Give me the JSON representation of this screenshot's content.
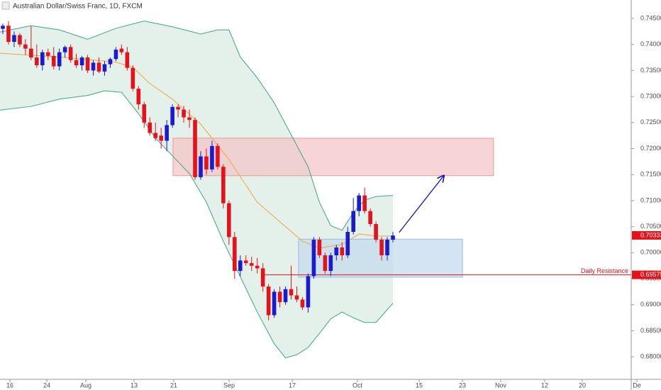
{
  "chart_data": {
    "type": "candlestick",
    "title": "Australian Dollar/Swiss Franc, 1D, FXCM",
    "up_color": "#1a1ad0",
    "down_color": "#e3121b",
    "open": [
      0.743,
      0.7436,
      0.7405,
      0.7418,
      0.74,
      0.7392,
      0.7375,
      0.736,
      0.7385,
      0.7378,
      0.7358,
      0.7385,
      0.7395,
      0.737,
      0.736,
      0.7375,
      0.735,
      0.7365,
      0.7348,
      0.7362,
      0.7372,
      0.7392,
      0.7385,
      0.7355,
      0.7315,
      0.7285,
      0.725,
      0.723,
      0.7225,
      0.7215,
      0.7245,
      0.728,
      0.7275,
      0.726,
      0.7255,
      0.7145,
      0.7185,
      0.716,
      0.7205,
      0.7165,
      0.7095,
      0.703,
      0.6965,
      0.6985,
      0.698,
      0.6975,
      0.697,
      0.6935,
      0.688,
      0.6925,
      0.6905,
      0.693,
      0.6918,
      0.691,
      0.6895,
      0.6955,
      0.7025,
      0.6995,
      0.6965,
      0.6995,
      0.701,
      0.6995,
      0.704,
      0.708,
      0.711,
      0.708,
      0.7055,
      0.7025,
      0.6995,
      0.7025
    ],
    "high": [
      0.744,
      0.7445,
      0.7425,
      0.7422,
      0.741,
      0.7435,
      0.74,
      0.739,
      0.7392,
      0.7395,
      0.7392,
      0.7398,
      0.74,
      0.7382,
      0.7378,
      0.738,
      0.737,
      0.7375,
      0.7368,
      0.7375,
      0.7395,
      0.74,
      0.7395,
      0.736,
      0.732,
      0.729,
      0.726,
      0.725,
      0.724,
      0.7255,
      0.7285,
      0.7285,
      0.7282,
      0.7275,
      0.726,
      0.7195,
      0.72,
      0.7215,
      0.721,
      0.717,
      0.71,
      0.704,
      0.6995,
      0.6995,
      0.6992,
      0.699,
      0.698,
      0.694,
      0.693,
      0.6935,
      0.6935,
      0.6975,
      0.6935,
      0.6915,
      0.696,
      0.703,
      0.703,
      0.7,
      0.7,
      0.7015,
      0.702,
      0.705,
      0.7105,
      0.7115,
      0.7125,
      0.7085,
      0.706,
      0.703,
      0.703,
      0.704
    ],
    "low": [
      0.742,
      0.74,
      0.7395,
      0.7395,
      0.738,
      0.737,
      0.7355,
      0.735,
      0.737,
      0.7352,
      0.735,
      0.7375,
      0.7365,
      0.7355,
      0.735,
      0.7345,
      0.734,
      0.7345,
      0.734,
      0.7355,
      0.7368,
      0.738,
      0.735,
      0.731,
      0.7275,
      0.724,
      0.7225,
      0.7215,
      0.72,
      0.7195,
      0.724,
      0.726,
      0.725,
      0.724,
      0.714,
      0.714,
      0.715,
      0.7155,
      0.716,
      0.7085,
      0.7015,
      0.695,
      0.6955,
      0.6975,
      0.6965,
      0.696,
      0.6925,
      0.687,
      0.6875,
      0.6895,
      0.69,
      0.691,
      0.6905,
      0.689,
      0.6885,
      0.695,
      0.699,
      0.696,
      0.6955,
      0.6985,
      0.6985,
      0.699,
      0.7035,
      0.707,
      0.7075,
      0.705,
      0.702,
      0.6985,
      0.6985,
      0.702
    ],
    "close": [
      0.7436,
      0.7405,
      0.7418,
      0.74,
      0.7392,
      0.7375,
      0.736,
      0.7385,
      0.7378,
      0.7358,
      0.7385,
      0.7395,
      0.737,
      0.736,
      0.7375,
      0.735,
      0.7365,
      0.7348,
      0.7362,
      0.7372,
      0.739,
      0.7385,
      0.7355,
      0.7315,
      0.7285,
      0.725,
      0.723,
      0.722,
      0.7215,
      0.7245,
      0.728,
      0.7275,
      0.726,
      0.7255,
      0.7145,
      0.7185,
      0.716,
      0.7205,
      0.7165,
      0.7095,
      0.703,
      0.6965,
      0.6985,
      0.698,
      0.6975,
      0.697,
      0.6935,
      0.688,
      0.6925,
      0.6905,
      0.693,
      0.6918,
      0.691,
      0.6895,
      0.6955,
      0.7025,
      0.6995,
      0.6965,
      0.6995,
      0.701,
      0.6995,
      0.704,
      0.708,
      0.711,
      0.708,
      0.7055,
      0.7025,
      0.6995,
      0.7025,
      0.7033
    ],
    "bands": [
      {
        "color": "#3fa585",
        "x": [
          -0.5,
          5,
          10,
          15,
          20,
          25,
          30,
          35,
          38,
          40,
          42,
          45,
          48,
          50,
          52,
          54,
          56,
          58,
          60,
          62,
          64,
          66,
          69
        ],
        "values": [
          0.7424,
          0.7436,
          0.7428,
          0.741,
          0.7431,
          0.7445,
          0.7434,
          0.742,
          0.7428,
          0.7428,
          0.7376,
          0.7336,
          0.7288,
          0.7247,
          0.7206,
          0.7165,
          0.7097,
          0.7052,
          0.7043,
          0.7077,
          0.7101,
          0.7108,
          0.711
        ]
      },
      {
        "color": "#f2a43a",
        "x": [
          -0.5,
          10,
          20,
          23,
          26,
          30,
          35,
          40,
          45,
          50,
          53,
          56,
          60,
          63,
          66,
          69
        ],
        "values": [
          0.7383,
          0.7376,
          0.7366,
          0.7356,
          0.7325,
          0.7295,
          0.7247,
          0.7179,
          0.7097,
          0.705,
          0.7022,
          0.7009,
          0.7016,
          0.7036,
          0.7032,
          0.7032
        ]
      },
      {
        "color": "#3fa585",
        "x": [
          -0.5,
          5,
          10,
          15,
          18,
          21,
          24,
          27,
          30,
          33,
          36,
          39,
          42,
          45,
          48,
          50,
          52,
          54,
          56,
          58,
          60,
          62,
          64,
          66,
          69
        ],
        "values": [
          0.7274,
          0.7281,
          0.7295,
          0.7302,
          0.7311,
          0.7308,
          0.7267,
          0.722,
          0.7186,
          0.7152,
          0.7097,
          0.7022,
          0.6954,
          0.6886,
          0.6825,
          0.6798,
          0.6804,
          0.6818,
          0.6845,
          0.6873,
          0.6886,
          0.6875,
          0.6866,
          0.6866,
          0.6903
        ]
      }
    ],
    "band_fill": "#e3f1ea",
    "zones": [
      {
        "color": "#f4c6c8",
        "stroke": "#e79a9c",
        "xlim": [
          30.1,
          86.8
        ],
        "ylim": [
          0.7148,
          0.722
        ]
      },
      {
        "color": "#c5dbee",
        "stroke": "#9bbbe0",
        "xlim": [
          52.3,
          81.3
        ],
        "ylim": [
          0.6953,
          0.7026
        ]
      }
    ],
    "hline": {
      "value": 0.69575,
      "label": "0.69575",
      "x_start": 45.7,
      "text": "Daily Resistance",
      "color": "#e3121b"
    },
    "last_price": {
      "value": 0.70333,
      "label": "0.70333",
      "color": "#e3121b"
    },
    "arrow": {
      "color": "#1010c8",
      "x": [
        70.1,
        78.0
      ],
      "values": [
        0.7039,
        0.7148
      ]
    },
    "xlim": [
      -0.502,
      111.15
    ],
    "ylim": [
      0.67567,
      0.74854
    ],
    "xticks": [
      {
        "value": 1.25,
        "label": "16"
      },
      {
        "value": 7.78,
        "label": "24"
      },
      {
        "value": 14.68,
        "label": "Aug"
      },
      {
        "value": 23.21,
        "label": "13"
      },
      {
        "value": 30.23,
        "label": "21"
      },
      {
        "value": 40.02,
        "label": "Sep"
      },
      {
        "value": 51.19,
        "label": "17"
      },
      {
        "value": 62.72,
        "label": "Oct"
      },
      {
        "value": 73.64,
        "label": "15"
      },
      {
        "value": 81.29,
        "label": "23"
      },
      {
        "value": 88.07,
        "label": "Nov"
      },
      {
        "value": 95.85,
        "label": "12"
      },
      {
        "value": 102.5,
        "label": "20"
      },
      {
        "value": 112.16,
        "label": "De"
      }
    ],
    "yticks": [
      {
        "value": 0.68,
        "label": "0.68000"
      },
      {
        "value": 0.685,
        "label": "0.68500"
      },
      {
        "value": 0.69,
        "label": "0.69000"
      },
      {
        "value": 0.695,
        "label": "0.69500"
      },
      {
        "value": 0.7,
        "label": "0.70000"
      },
      {
        "value": 0.705,
        "label": "0.70500"
      },
      {
        "value": 0.71,
        "label": "0.71000"
      },
      {
        "value": 0.715,
        "label": "0.71500"
      },
      {
        "value": 0.72,
        "label": "0.72000"
      },
      {
        "value": 0.725,
        "label": "0.72500"
      },
      {
        "value": 0.73,
        "label": "0.73000"
      },
      {
        "value": 0.735,
        "label": "0.73500"
      },
      {
        "value": 0.74,
        "label": "0.74000"
      },
      {
        "value": 0.745,
        "label": "0.74500"
      }
    ]
  }
}
